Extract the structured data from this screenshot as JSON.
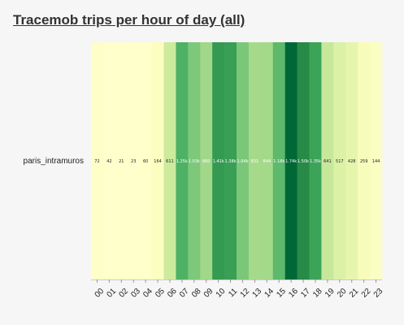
{
  "page": {
    "title": "Tracemob trips per hour of day (all)"
  },
  "chart_data": {
    "type": "heatmap",
    "title": "Tracemob trips per hour of day (all)",
    "xlabel": "",
    "ylabel": "",
    "rows": [
      "paris_intramuros"
    ],
    "categories": [
      "00",
      "01",
      "02",
      "03",
      "04",
      "05",
      "06",
      "07",
      "08",
      "09",
      "10",
      "11",
      "12",
      "13",
      "14",
      "15",
      "16",
      "17",
      "18",
      "19",
      "20",
      "21",
      "22",
      "23"
    ],
    "values": [
      [
        72,
        42,
        21,
        23,
        60,
        164,
        611,
        1250,
        1030,
        860,
        1410,
        1380,
        1040,
        831,
        844,
        1180,
        1740,
        1500,
        1350,
        641,
        517,
        428,
        259,
        144
      ]
    ],
    "cell_labels": [
      [
        "72",
        "42",
        "21",
        "23",
        "60",
        "164",
        "611",
        "1.25k",
        "1.03k",
        "860",
        "1.41k",
        "1.38k",
        "1.04k",
        "831",
        "844",
        "1.18k",
        "1.74k",
        "1.50k",
        "1.35k",
        "641",
        "517",
        "428",
        "259",
        "144"
      ]
    ],
    "color_scale": {
      "name": "YlGn",
      "low": "#ffffcc",
      "mid": "#78c679",
      "high": "#006837"
    }
  }
}
